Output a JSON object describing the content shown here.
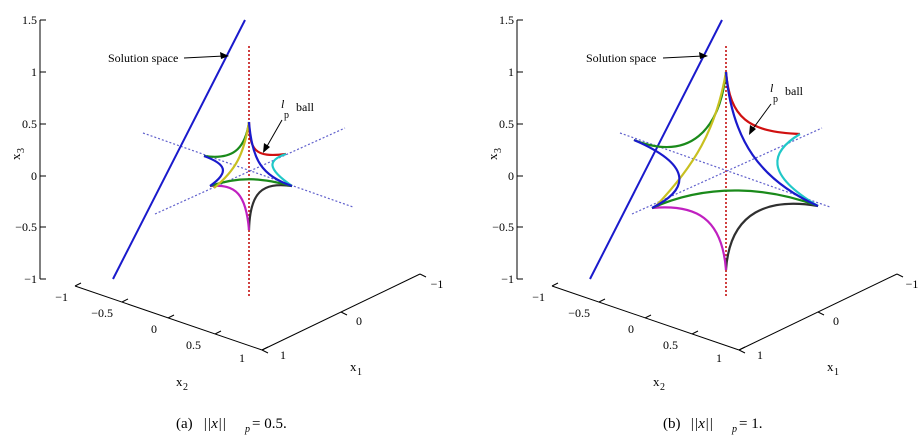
{
  "chart_data": [
    {
      "type": "line",
      "panel": "(a)",
      "caption": {
        "prefix": "(a) ",
        "norm": "||x||",
        "sub": "p",
        "rest": " = 0.5."
      },
      "p": 0.5,
      "axes": {
        "x3": {
          "label": "x",
          "sub": "3",
          "ticks": [
            "1.5",
            "1",
            "0.5",
            "0",
            "−0.5",
            "−1"
          ],
          "range": [
            -1,
            1.5
          ]
        },
        "x2": {
          "label": "x",
          "sub": "2",
          "ticks": [
            "−1",
            "−0.5",
            "0",
            "0.5",
            "1"
          ],
          "range": [
            -1,
            1
          ]
        },
        "x1": {
          "label": "x",
          "sub": "1",
          "ticks": [
            "−1",
            "0",
            "1"
          ],
          "range": [
            -1,
            1
          ]
        }
      },
      "annotations": {
        "solution_space": "Solution space",
        "lp_ball": {
          "l": "l",
          "p": "p",
          "ball": "ball"
        }
      },
      "series_colors": [
        "#d01010",
        "#20c8c8",
        "#303030",
        "#c020c0",
        "#1a8a1a",
        "#c8c020",
        "#1a1acc"
      ]
    },
    {
      "type": "line",
      "panel": "(b)",
      "caption": {
        "prefix": "(b) ",
        "norm": "||x||",
        "sub": "p",
        "rest": " = 1."
      },
      "p": 1,
      "axes": {
        "x3": {
          "label": "x",
          "sub": "3",
          "ticks": [
            "1.5",
            "1",
            "0.5",
            "0",
            "−0.5",
            "−1"
          ],
          "range": [
            -1,
            1.5
          ]
        },
        "x2": {
          "label": "x",
          "sub": "2",
          "ticks": [
            "−1",
            "−0.5",
            "0",
            "0.5",
            "1"
          ],
          "range": [
            -1,
            1
          ]
        },
        "x1": {
          "label": "x",
          "sub": "1",
          "ticks": [
            "−1",
            "0",
            "1"
          ],
          "range": [
            -1,
            1
          ]
        }
      },
      "annotations": {
        "solution_space": "Solution space",
        "lp_ball": {
          "l": "l",
          "p": "p",
          "ball": "ball"
        }
      },
      "series_colors": [
        "#d01010",
        "#20c8c8",
        "#303030",
        "#c020c0",
        "#1a8a1a",
        "#c8c020",
        "#1a1acc"
      ]
    }
  ]
}
